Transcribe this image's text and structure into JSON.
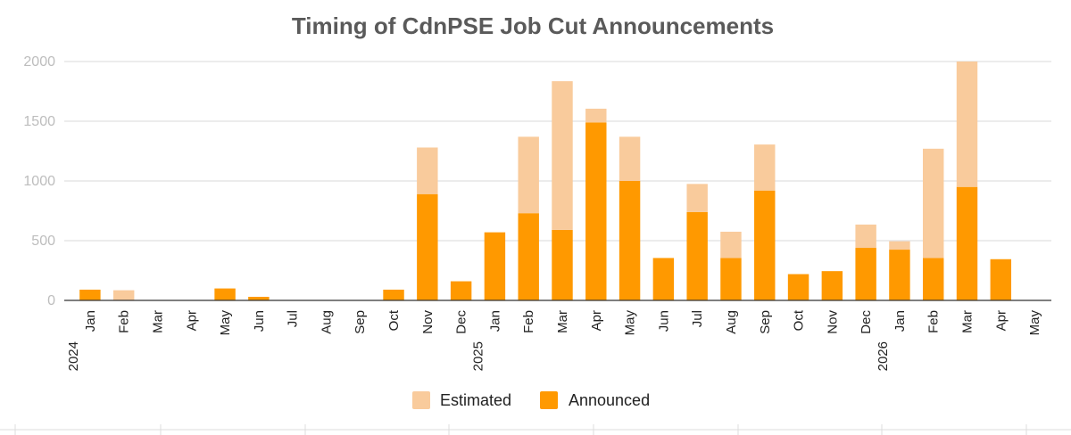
{
  "chart_data": {
    "type": "bar",
    "stacked": true,
    "title": "Timing of CdnPSE Job Cut Announcements",
    "xlabel": "",
    "ylabel": "",
    "ylim": [
      0,
      2000
    ],
    "yticks": [
      0,
      500,
      1000,
      1500,
      2000
    ],
    "grid": true,
    "legend_position": "bottom",
    "categories": [
      "Jan",
      "Feb",
      "Mar",
      "Apr",
      "May",
      "Jun",
      "Jul",
      "Aug",
      "Sep",
      "Oct",
      "Nov",
      "Dec",
      "Jan",
      "Feb",
      "Mar",
      "Apr",
      "May",
      "Jun",
      "Jul",
      "Aug",
      "Sep",
      "Oct",
      "Nov",
      "Dec",
      "Jan",
      "Feb",
      "Mar",
      "Apr",
      "May"
    ],
    "years": [
      {
        "label": "2024",
        "index": 0
      },
      {
        "label": "2025",
        "index": 12
      },
      {
        "label": "2026",
        "index": 24
      }
    ],
    "series": [
      {
        "name": "Announced",
        "color": "#ff9900",
        "values": [
          90,
          0,
          0,
          0,
          100,
          30,
          0,
          0,
          0,
          90,
          890,
          160,
          570,
          730,
          590,
          1490,
          1000,
          355,
          740,
          355,
          920,
          220,
          245,
          440,
          425,
          355,
          950,
          345,
          0
        ]
      },
      {
        "name": "Estimated",
        "color": "#f9cb9c",
        "values": [
          0,
          85,
          0,
          0,
          0,
          0,
          0,
          0,
          0,
          0,
          390,
          0,
          0,
          640,
          1245,
          115,
          370,
          0,
          235,
          220,
          385,
          0,
          0,
          195,
          70,
          915,
          1050,
          0,
          0
        ]
      }
    ]
  }
}
